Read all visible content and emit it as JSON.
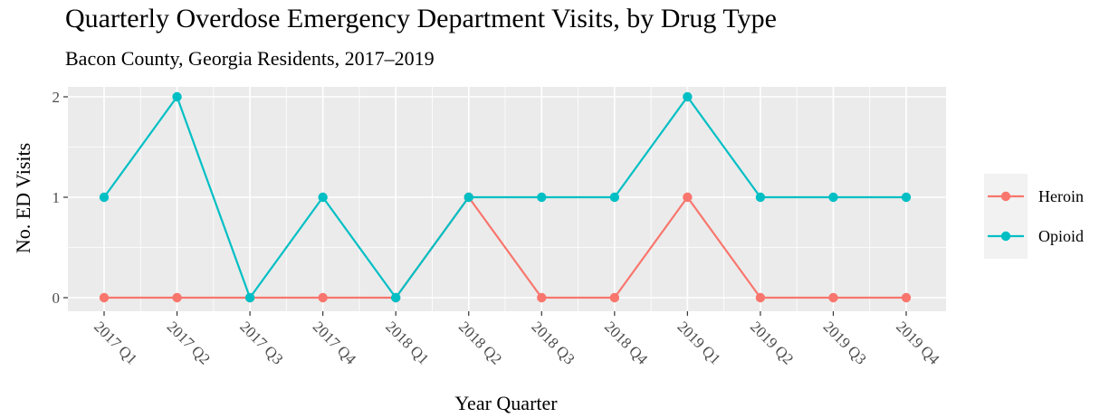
{
  "chart_data": {
    "type": "line",
    "title": "Quarterly Overdose Emergency Department Visits, by Drug Type",
    "subtitle": "Bacon County, Georgia Residents, 2017–2019",
    "xlabel": "Year Quarter",
    "ylabel": "No. ED Visits",
    "categories": [
      "2017 Q1",
      "2017 Q2",
      "2017 Q3",
      "2017 Q4",
      "2018 Q1",
      "2018 Q2",
      "2018 Q3",
      "2018 Q4",
      "2019 Q1",
      "2019 Q2",
      "2019 Q3",
      "2019 Q4"
    ],
    "yticks": [
      0,
      1,
      2
    ],
    "ylim": [
      0,
      2
    ],
    "grid": true,
    "legend_position": "right",
    "series": [
      {
        "name": "Heroin",
        "color": "#F8766D",
        "values": [
          0,
          0,
          0,
          0,
          0,
          1,
          0,
          0,
          1,
          0,
          0,
          0
        ]
      },
      {
        "name": "Opioid",
        "color": "#00BFC4",
        "values": [
          1,
          2,
          0,
          1,
          0,
          1,
          1,
          1,
          2,
          1,
          1,
          1
        ]
      }
    ]
  }
}
